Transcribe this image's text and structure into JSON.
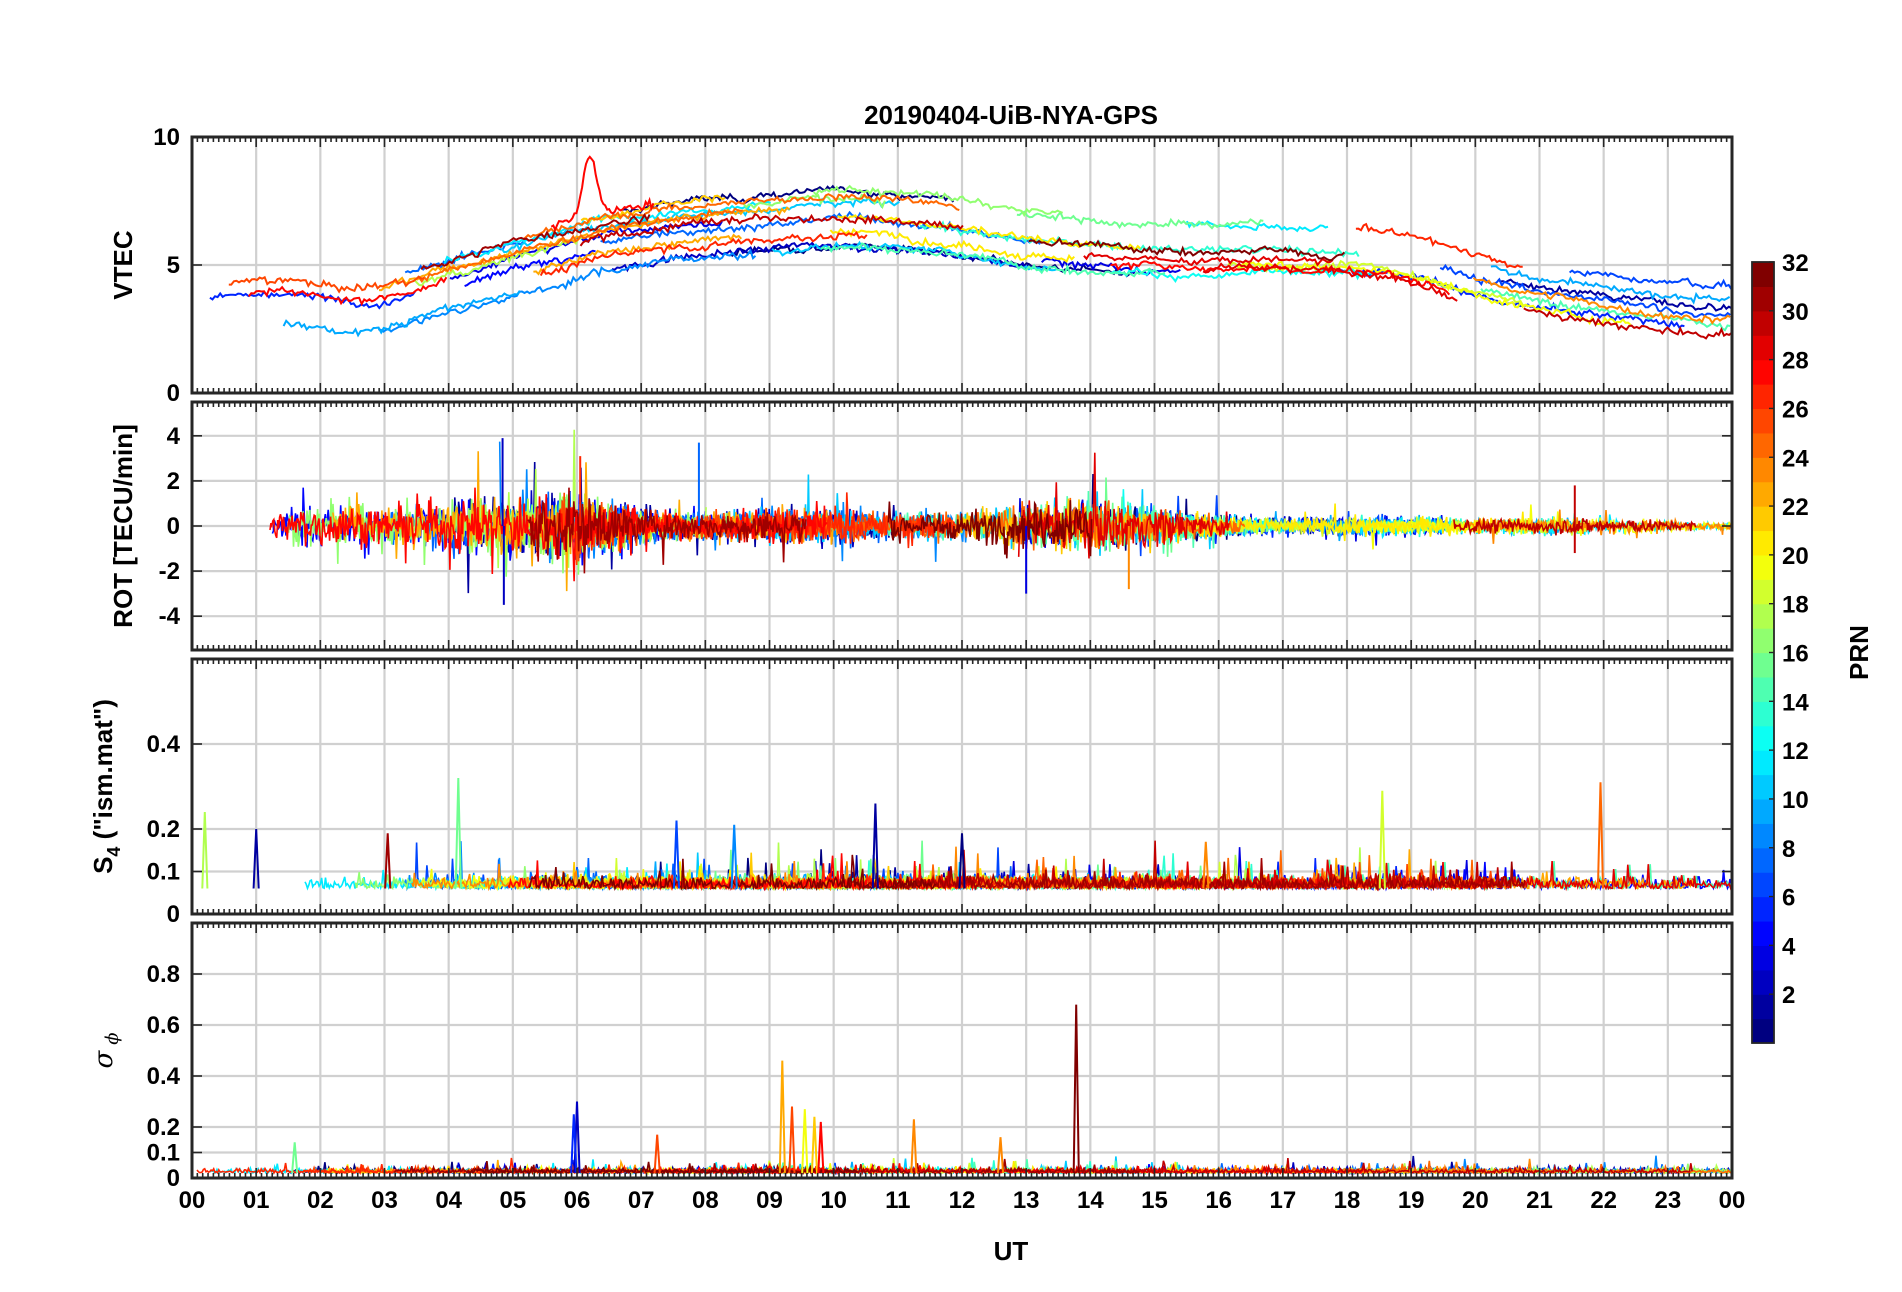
{
  "chart_data": {
    "type": "line",
    "title": "20190404-UiB-NYA-GPS",
    "xlabel": "UT",
    "x_tick_labels": [
      "00",
      "01",
      "02",
      "03",
      "04",
      "05",
      "06",
      "07",
      "08",
      "09",
      "10",
      "11",
      "12",
      "13",
      "14",
      "15",
      "16",
      "17",
      "18",
      "19",
      "20",
      "21",
      "22",
      "23",
      "00"
    ],
    "xlim": [
      0,
      24
    ],
    "grid": true,
    "colorbar": {
      "label": "PRN",
      "range": [
        1,
        32
      ],
      "tick_labels": [
        "2",
        "4",
        "6",
        "8",
        "10",
        "12",
        "14",
        "16",
        "18",
        "20",
        "22",
        "24",
        "26",
        "28",
        "30",
        "32"
      ],
      "colormap": "jet",
      "placement": "right"
    },
    "panels": [
      {
        "id": "vtec",
        "ylabel": "VTEC",
        "ylim": [
          0,
          10
        ],
        "y_ticks": [
          0,
          5,
          10
        ],
        "y_tick_labels": [
          "0",
          "5",
          "10"
        ],
        "series_kind": "continuous",
        "base_x": [
          0,
          0.5,
          1,
          1.5,
          2,
          2.5,
          3,
          3.5,
          4,
          4.5,
          5,
          5.5,
          6,
          6.5,
          7,
          7.5,
          8,
          8.5,
          9,
          9.5,
          10,
          10.5,
          11,
          11.5,
          12,
          12.5,
          13,
          13.5,
          14,
          14.5,
          15,
          15.5,
          16,
          16.5,
          17,
          17.5,
          18,
          18.5,
          19,
          19.5,
          20,
          20.5,
          21,
          21.5,
          22,
          22.5,
          23,
          23.5,
          24
        ],
        "base_y": [
          3.5,
          3.6,
          3.7,
          3.7,
          3.5,
          3.4,
          3.5,
          3.9,
          4.3,
          4.6,
          5.0,
          5.3,
          5.6,
          5.9,
          6.1,
          6.3,
          6.4,
          6.5,
          6.6,
          6.7,
          6.8,
          6.8,
          6.7,
          6.6,
          6.4,
          6.2,
          6.0,
          5.9,
          5.8,
          5.7,
          5.7,
          5.6,
          5.6,
          5.6,
          5.6,
          5.5,
          5.5,
          5.4,
          5.2,
          4.9,
          4.5,
          4.2,
          3.9,
          3.7,
          3.5,
          3.3,
          3.2,
          3.1,
          3.0
        ],
        "peak": {
          "x": 6.2,
          "y": 9.3,
          "prn": 28
        }
      },
      {
        "id": "rot",
        "ylabel": "ROT [TECU/min]",
        "ylim": [
          -5.5,
          5.5
        ],
        "y_ticks": [
          -4,
          -2,
          0,
          2,
          4
        ],
        "y_tick_labels": [
          "-4",
          "-2",
          "0",
          "2",
          "4"
        ],
        "series_kind": "noise",
        "base_x": [
          0,
          1,
          2,
          3,
          4,
          5,
          6,
          7,
          8,
          9,
          10,
          11,
          12,
          13,
          14,
          15,
          16,
          17,
          18,
          19,
          20,
          21,
          22,
          23,
          24
        ],
        "amplitude": [
          0.3,
          0.35,
          0.9,
          0.7,
          1.1,
          1.2,
          1.3,
          0.7,
          0.5,
          0.7,
          0.7,
          0.5,
          0.6,
          0.9,
          1.0,
          0.8,
          0.4,
          0.3,
          0.4,
          0.35,
          0.3,
          0.3,
          0.35,
          0.2,
          0.15
        ],
        "spikes": [
          {
            "x": 4.84,
            "y": 3.9,
            "prn": 3
          },
          {
            "x": 4.86,
            "y": -3.5,
            "prn": 3
          },
          {
            "x": 6.05,
            "y": 3.1,
            "prn": 27
          },
          {
            "x": 7.9,
            "y": 3.7,
            "prn": 8
          },
          {
            "x": 13.0,
            "y": -3.0,
            "prn": 4
          },
          {
            "x": 14.6,
            "y": -2.8,
            "prn": 24
          },
          {
            "x": 21.55,
            "y": 1.8,
            "prn": 30
          },
          {
            "x": 21.55,
            "y": -1.2,
            "prn": 30
          }
        ]
      },
      {
        "id": "s4",
        "ylabel": "S4 (\"ism.mat\")",
        "ylim": [
          0,
          0.6
        ],
        "y_ticks": [
          0,
          0.1,
          0.2,
          0.4
        ],
        "y_tick_labels": [
          "0",
          "0.1",
          "0.2",
          "0.4"
        ],
        "series_kind": "noise",
        "baseline": 0.06,
        "amplitude": 0.025,
        "spikes": [
          {
            "x": 4.15,
            "y": 0.32,
            "prn": 16
          },
          {
            "x": 10.65,
            "y": 0.26,
            "prn": 2
          },
          {
            "x": 18.55,
            "y": 0.29,
            "prn": 19
          },
          {
            "x": 21.95,
            "y": 0.31,
            "prn": 25
          },
          {
            "x": 7.55,
            "y": 0.22,
            "prn": 7
          },
          {
            "x": 8.45,
            "y": 0.21,
            "prn": 9
          },
          {
            "x": 12.0,
            "y": 0.19,
            "prn": 1
          },
          {
            "x": 0.2,
            "y": 0.24,
            "prn": 18
          },
          {
            "x": 1.0,
            "y": 0.2,
            "prn": 2
          },
          {
            "x": 3.05,
            "y": 0.19,
            "prn": 31
          },
          {
            "x": 15.8,
            "y": 0.17,
            "prn": 24
          }
        ]
      },
      {
        "id": "sigma_phi",
        "ylabel": "σ ϕ",
        "ylim": [
          0,
          1.0
        ],
        "y_ticks": [
          0,
          0.1,
          0.2,
          0.4,
          0.6,
          0.8
        ],
        "y_tick_labels": [
          "0",
          "0.1",
          "0.2",
          "0.4",
          "0.6",
          "0.8"
        ],
        "series_kind": "noise",
        "baseline": 0.02,
        "amplitude": 0.015,
        "spikes": [
          {
            "x": 13.78,
            "y": 0.68,
            "prn": 32
          },
          {
            "x": 9.2,
            "y": 0.46,
            "prn": 23
          },
          {
            "x": 9.35,
            "y": 0.28,
            "prn": 26
          },
          {
            "x": 9.55,
            "y": 0.27,
            "prn": 20
          },
          {
            "x": 9.7,
            "y": 0.24,
            "prn": 22
          },
          {
            "x": 9.8,
            "y": 0.22,
            "prn": 28
          },
          {
            "x": 6.0,
            "y": 0.3,
            "prn": 3
          },
          {
            "x": 5.95,
            "y": 0.25,
            "prn": 6
          },
          {
            "x": 11.25,
            "y": 0.23,
            "prn": 24
          },
          {
            "x": 12.6,
            "y": 0.16,
            "prn": 24
          },
          {
            "x": 7.25,
            "y": 0.17,
            "prn": 26
          },
          {
            "x": 1.6,
            "y": 0.14,
            "prn": 16
          }
        ]
      }
    ]
  }
}
